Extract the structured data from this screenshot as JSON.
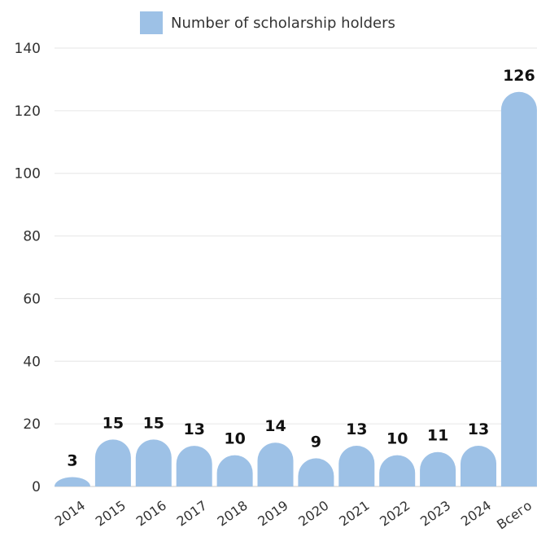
{
  "chart_data": {
    "type": "bar",
    "categories": [
      "2014",
      "2015",
      "2016",
      "2017",
      "2018",
      "2019",
      "2020",
      "2021",
      "2022",
      "2023",
      "2024",
      "Всего"
    ],
    "series": [
      {
        "name": "Number of scholarship holders",
        "values": [
          3,
          15,
          15,
          13,
          10,
          14,
          9,
          13,
          10,
          11,
          13,
          126
        ],
        "color": "#9dc1e6"
      }
    ],
    "xlabel": "",
    "ylabel": "",
    "ylim": [
      0,
      140
    ],
    "yticks": [
      0,
      20,
      40,
      60,
      80,
      100,
      120,
      140
    ],
    "grid": true,
    "legend": "top-center",
    "data_labels": true
  }
}
